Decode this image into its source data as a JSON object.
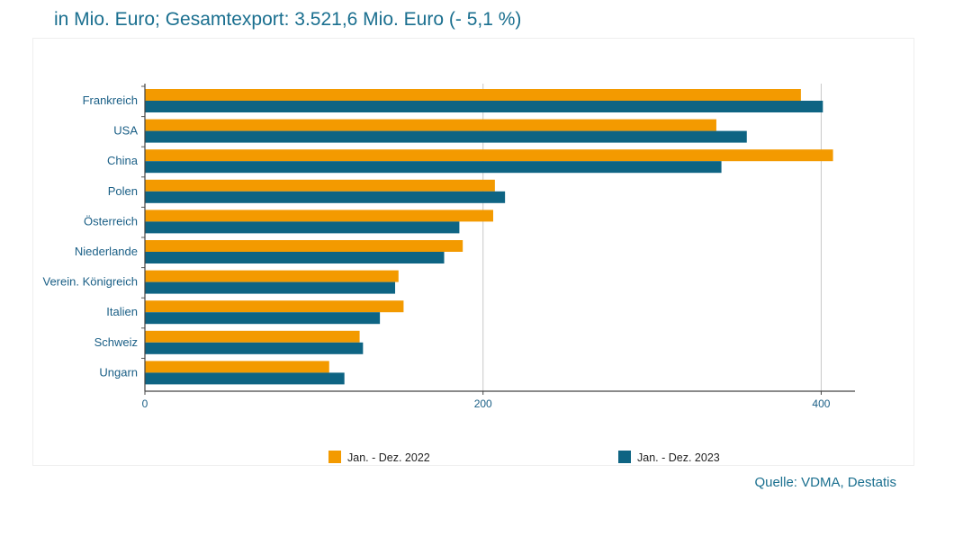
{
  "title": "in Mio. Euro; Gesamtexport: 3.521,6 Mio. Euro (- 5,1 %)",
  "source": "Quelle: VDMA, Destatis",
  "colors": {
    "series_2022": "#f39a00",
    "series_2023": "#0e6483",
    "grid": "#c8c8c8",
    "text": "#1a5f86"
  },
  "chart_data": {
    "type": "bar",
    "orientation": "horizontal",
    "title": "in Mio. Euro; Gesamtexport: 3.521,6 Mio. Euro (- 5,1 %)",
    "xlabel": "",
    "ylabel": "",
    "xlim": [
      0,
      420
    ],
    "xticks": [
      0,
      200,
      400
    ],
    "grid": true,
    "legend_position": "bottom",
    "categories": [
      "Frankreich",
      "USA",
      "China",
      "Polen",
      "Österreich",
      "Niederlande",
      "Verein. Königreich",
      "Italien",
      "Schweiz",
      "Ungarn"
    ],
    "series": [
      {
        "name": "Jan. - Dez. 2022",
        "color": "#f39a00",
        "values": [
          388,
          338,
          407,
          207,
          206,
          188,
          150,
          153,
          127,
          109
        ]
      },
      {
        "name": "Jan. - Dez. 2023",
        "color": "#0e6483",
        "values": [
          401,
          356,
          341,
          213,
          186,
          177,
          148,
          139,
          129,
          118
        ]
      }
    ]
  }
}
